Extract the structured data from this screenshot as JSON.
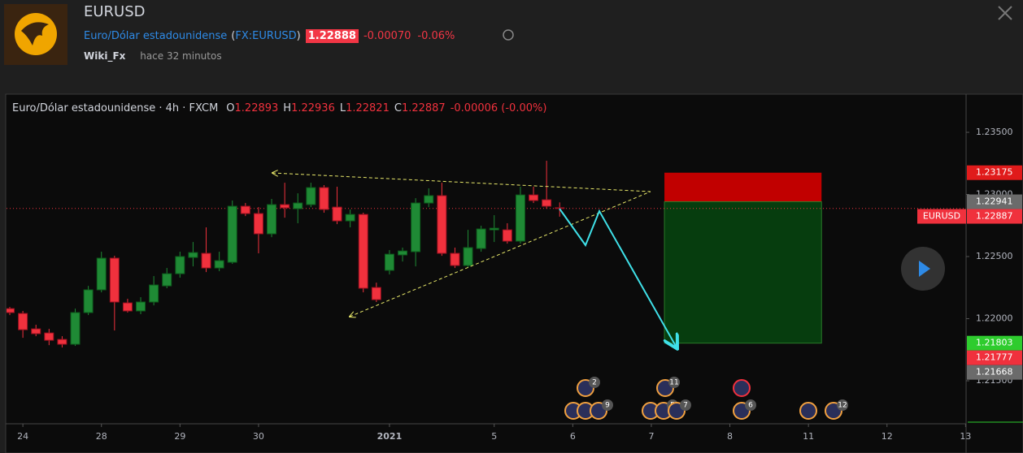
{
  "header": {
    "symbol": "EURUSD",
    "name": "Euro/Dólar estadounidense",
    "exchange": "FX:EURUSD",
    "price": "1.22888",
    "change": "-0.00070",
    "change_percent": "-0.06%",
    "author": "Wiki_Fx",
    "time": "hace 32 minutos"
  },
  "chart_data": {
    "type": "candlestick",
    "legend_title": "Euro/Dólar estadounidense · 4h · FXCM",
    "ohlc_labels": [
      "O",
      "H",
      "L",
      "C"
    ],
    "change": "-0.00006 (-0.00%)",
    "up_color": "#1f8a35",
    "down_color": "#f0313d",
    "open": [
      1.22081,
      1.22042,
      1.21918,
      1.21885,
      1.21833,
      1.21794,
      1.22049,
      1.22232,
      1.22487,
      1.22127,
      1.22062,
      1.22134,
      1.22264,
      1.22362,
      1.22493,
      1.22526,
      1.22408,
      1.22454,
      1.22905,
      1.22846,
      1.22683,
      1.22918,
      1.22885,
      1.22918,
      1.23055,
      1.22898,
      1.22787,
      1.22839,
      1.22251,
      1.22389,
      1.22513,
      1.22539,
      1.22931,
      1.2299,
      1.22526,
      1.22428,
      1.22565,
      1.22715,
      1.22715,
      1.22624,
      1.22996,
      1.22957,
      1.22893
    ],
    "high": [
      1.22094,
      1.22062,
      1.21951,
      1.21918,
      1.21859,
      1.22081,
      1.22264,
      1.22539,
      1.22506,
      1.2216,
      1.22173,
      1.22343,
      1.22408,
      1.22539,
      1.22617,
      1.22735,
      1.22539,
      1.22951,
      1.22931,
      1.22898,
      1.22964,
      1.23094,
      1.23009,
      1.23094,
      1.23075,
      1.23062,
      1.22879,
      1.22853,
      1.2229,
      1.22552,
      1.22572,
      1.2297,
      1.23049,
      1.23094,
      1.22572,
      1.22715,
      1.22748,
      1.22833,
      1.22768,
      1.23062,
      1.23062,
      1.23271,
      1.22936
    ],
    "low": [
      1.22029,
      1.21846,
      1.21859,
      1.21787,
      1.21768,
      1.21781,
      1.22029,
      1.22212,
      1.21905,
      1.22049,
      1.22036,
      1.22107,
      1.22245,
      1.2233,
      1.22421,
      1.22375,
      1.22382,
      1.22441,
      1.22826,
      1.22526,
      1.22656,
      1.22813,
      1.22768,
      1.22898,
      1.22853,
      1.22761,
      1.22735,
      1.22212,
      1.22134,
      1.22356,
      1.2246,
      1.22421,
      1.22898,
      1.22506,
      1.22408,
      1.22408,
      1.22539,
      1.22617,
      1.22604,
      1.22604,
      1.22931,
      1.22885,
      1.22821
    ],
    "close": [
      1.22049,
      1.21911,
      1.21879,
      1.21826,
      1.21794,
      1.22049,
      1.22232,
      1.22487,
      1.22134,
      1.22062,
      1.22134,
      1.22271,
      1.22362,
      1.225,
      1.22532,
      1.22408,
      1.22467,
      1.22905,
      1.22846,
      1.22683,
      1.22918,
      1.22892,
      1.22931,
      1.23055,
      1.22879,
      1.22787,
      1.22839,
      1.22245,
      1.22153,
      1.22519,
      1.22545,
      1.22931,
      1.2299,
      1.22526,
      1.22428,
      1.22572,
      1.22722,
      1.22728,
      1.22624,
      1.22996,
      1.22951,
      1.22905,
      1.22887
    ],
    "xlim": [
      -0.25,
      73.04
    ],
    "xticks": [
      {
        "value": 1,
        "label": "24"
      },
      {
        "value": 7,
        "label": "28"
      },
      {
        "value": 13,
        "label": "29"
      },
      {
        "value": 19,
        "label": "30"
      },
      {
        "value": 29,
        "label": "2021"
      },
      {
        "value": 37,
        "label": "5"
      },
      {
        "value": 43,
        "label": "6"
      },
      {
        "value": 49,
        "label": "7"
      },
      {
        "value": 55,
        "label": "8"
      },
      {
        "value": 61,
        "label": "11"
      },
      {
        "value": 67,
        "label": "12"
      },
      {
        "value": 73,
        "label": "13"
      }
    ],
    "ylim": [
      1.21154,
      1.23807
    ],
    "yticks": [
      {
        "value": 1.235,
        "label": "1.23500"
      },
      {
        "value": 1.23,
        "label": "1.23000"
      },
      {
        "value": 1.225,
        "label": "1.22500"
      },
      {
        "value": 1.22,
        "label": "1.22000"
      },
      {
        "value": 1.215,
        "label": "1.21500"
      }
    ],
    "position": {
      "stop": 1.23175,
      "entry": 1.22941,
      "target": 1.21803,
      "x_start": 50,
      "x_end": 62,
      "stop_color": "#c10000",
      "target_color": "#063d0e"
    },
    "last_price": 1.22887,
    "last_price_tag": "EURUSD",
    "price_labels": [
      {
        "value": 1.23175,
        "color": "#e01b1b"
      },
      {
        "value": 1.22941,
        "color": "#6b6b6b"
      },
      {
        "value": 1.22887,
        "color": "#f0313d"
      },
      {
        "value": 1.21803,
        "color": "#2ecc2e"
      },
      {
        "value": 1.21777,
        "color": "#f0313d"
      },
      {
        "value": 1.21668,
        "color": "#6b6b6b"
      }
    ],
    "events": [
      "2",
      "11",
      "9",
      "5",
      "7",
      "6",
      "12"
    ]
  }
}
